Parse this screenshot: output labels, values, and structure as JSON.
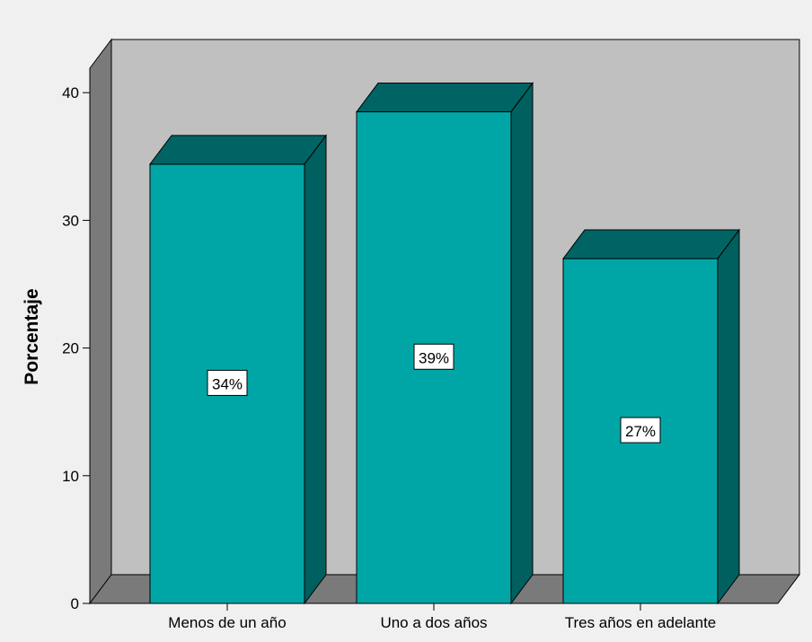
{
  "chart_data": {
    "type": "bar",
    "title": "",
    "xlabel": "",
    "ylabel": "Porcentaje",
    "categories": [
      "Menos de un año",
      "Uno a dos años",
      "Tres años en adelante"
    ],
    "values": [
      34.4,
      38.5,
      27.0
    ],
    "data_labels": [
      "34%",
      "39%",
      "27%"
    ],
    "ylim": [
      0,
      40
    ],
    "yticks": [
      0,
      10,
      20,
      30,
      40
    ],
    "ytick_labels": [
      "0",
      "10",
      "20",
      "30",
      "40"
    ],
    "grid": false,
    "legend": "none",
    "style": "3d-bar",
    "colors": {
      "background": "#f0f0f0",
      "back_wall": "#c0c0c0",
      "side_wall": "#7a7a7a",
      "floor": "#7a7a7a",
      "bar_front": "#00a6a6",
      "bar_top": "#006464",
      "bar_side": "#005f5f",
      "stroke": "#000000",
      "label_box": "#ffffff"
    }
  }
}
